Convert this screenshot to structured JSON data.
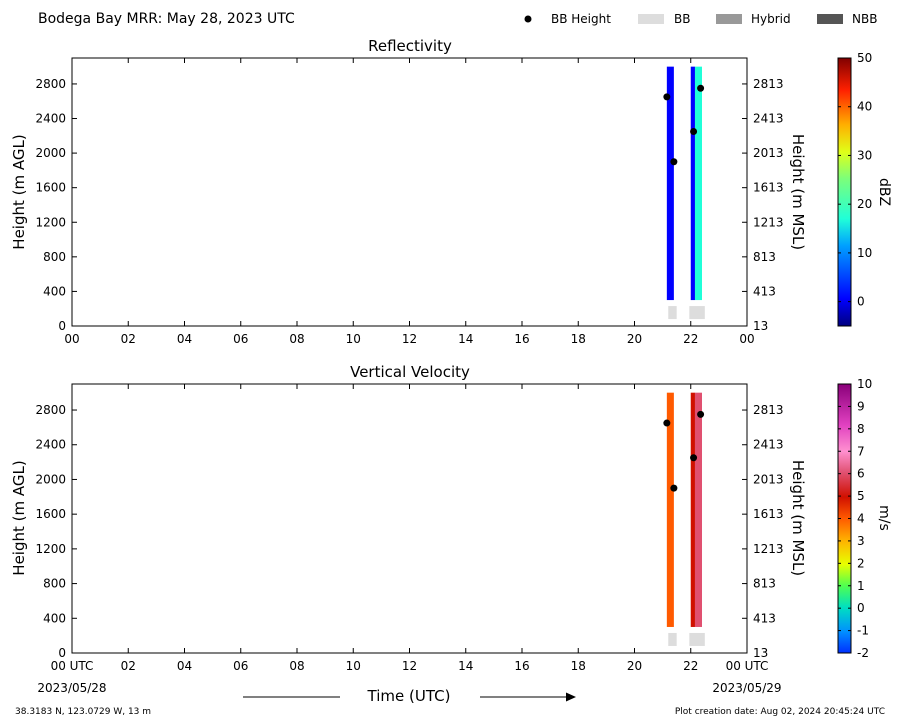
{
  "figure": {
    "title": "Bodega Bay MRR:  May 28, 2023 UTC",
    "legend": [
      {
        "label": "BB Height",
        "kind": "dot",
        "color": "#000000"
      },
      {
        "label": "BB",
        "kind": "swatch",
        "color": "#dddddd"
      },
      {
        "label": "Hybrid",
        "kind": "swatch",
        "color": "#999999"
      },
      {
        "label": "NBB",
        "kind": "swatch",
        "color": "#555555"
      }
    ],
    "xlabel": "Time (UTC)",
    "start_date": "2023/05/28",
    "end_date": "2023/05/29",
    "location": "38.3183 N, 123.0729 W, 13 m",
    "creation": "Plot creation date: Aug 02, 2024 20:45:24 UTC"
  },
  "chart_data": [
    {
      "type": "heatmap",
      "title": "Reflectivity",
      "ylabel": "Height (m AGL)",
      "ylabel_right": "Height (m MSL)",
      "xlim": [
        0,
        24
      ],
      "ylim": [
        0,
        3100
      ],
      "x_ticks": [
        "00",
        "02",
        "04",
        "06",
        "08",
        "10",
        "12",
        "14",
        "16",
        "18",
        "20",
        "22",
        "00"
      ],
      "y_ticks": [
        0,
        400,
        800,
        1200,
        1600,
        2000,
        2400,
        2800
      ],
      "y_ticks_right": [
        13,
        413,
        813,
        1213,
        1613,
        2013,
        2413,
        2813
      ],
      "colorbar": {
        "label": "dBZ",
        "min": -5,
        "max": 50,
        "ticks": [
          0,
          10,
          20,
          30,
          40,
          50
        ]
      },
      "echo_columns": [
        {
          "x0": 21.15,
          "x1": 21.4,
          "y0": 300,
          "y1": 3000,
          "value": 8
        },
        {
          "x0": 22.0,
          "x1": 22.15,
          "y0": 300,
          "y1": 3000,
          "value": 4
        },
        {
          "x0": 22.15,
          "x1": 22.4,
          "y0": 300,
          "y1": 3000,
          "value": 20
        }
      ],
      "bb_heights": [
        {
          "x": 21.15,
          "y": 2650
        },
        {
          "x": 21.4,
          "y": 1900
        },
        {
          "x": 22.1,
          "y": 2250
        },
        {
          "x": 22.35,
          "y": 2750
        }
      ],
      "bb_types": [
        {
          "x0": 21.2,
          "x1": 21.5,
          "class": "BB"
        },
        {
          "x0": 21.95,
          "x1": 22.5,
          "class": "BB"
        }
      ]
    },
    {
      "type": "heatmap",
      "title": "Vertical Velocity",
      "ylabel": "Height (m AGL)",
      "ylabel_right": "Height (m MSL)",
      "xlim": [
        0,
        24
      ],
      "ylim": [
        0,
        3100
      ],
      "x_ticks": [
        "00 UTC",
        "02",
        "04",
        "06",
        "08",
        "10",
        "12",
        "14",
        "16",
        "18",
        "20",
        "22",
        "00 UTC"
      ],
      "y_ticks": [
        0,
        400,
        800,
        1200,
        1600,
        2000,
        2400,
        2800
      ],
      "y_ticks_right": [
        13,
        413,
        813,
        1213,
        1613,
        2013,
        2413,
        2813
      ],
      "colorbar": {
        "label": "m/s",
        "min": -2,
        "max": 10,
        "ticks": [
          -2,
          -1,
          0,
          1,
          2,
          3,
          4,
          5,
          6,
          7,
          8,
          9,
          10
        ]
      },
      "echo_columns": [
        {
          "x0": 21.15,
          "x1": 21.4,
          "y0": 300,
          "y1": 3000,
          "value": 4
        },
        {
          "x0": 22.0,
          "x1": 22.15,
          "y0": 300,
          "y1": 3000,
          "value": 5
        },
        {
          "x0": 22.15,
          "x1": 22.4,
          "y0": 300,
          "y1": 3000,
          "value": 6.5
        }
      ],
      "bb_heights": [
        {
          "x": 21.15,
          "y": 2650
        },
        {
          "x": 21.4,
          "y": 1900
        },
        {
          "x": 22.1,
          "y": 2250
        },
        {
          "x": 22.35,
          "y": 2750
        }
      ],
      "bb_types": [
        {
          "x0": 21.2,
          "x1": 21.5,
          "class": "BB"
        },
        {
          "x0": 21.95,
          "x1": 22.5,
          "class": "BB"
        }
      ]
    }
  ]
}
